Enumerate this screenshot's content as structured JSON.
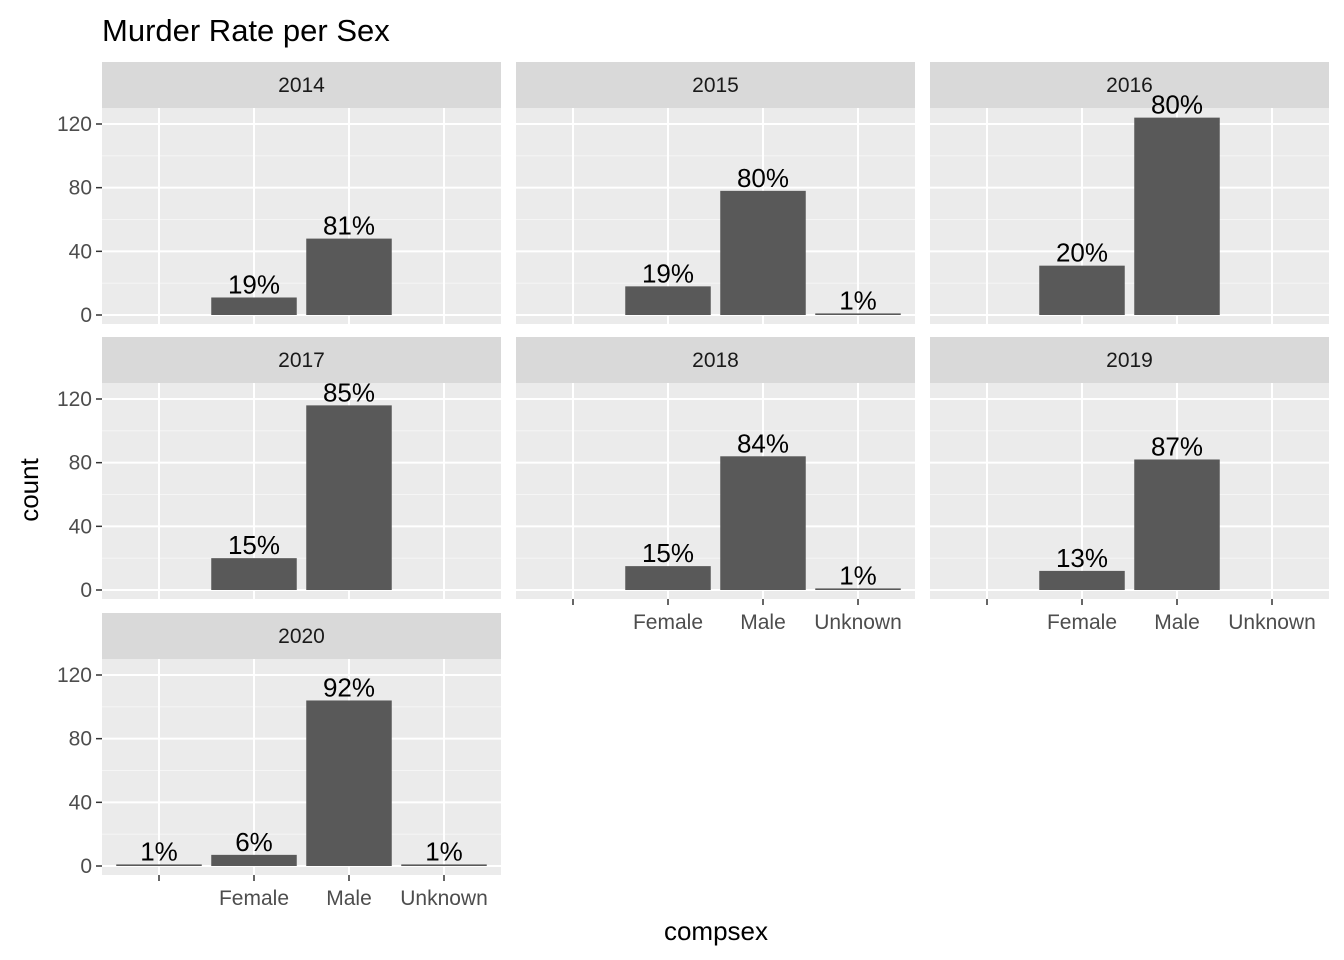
{
  "chart_data": {
    "type": "bar",
    "title": "Murder Rate per Sex",
    "xlabel": "compsex",
    "ylabel": "count",
    "categories": [
      "",
      "Female",
      "Male",
      "Unknown"
    ],
    "ylim": [
      0,
      140
    ],
    "yticks": [
      0,
      40,
      80,
      120
    ],
    "grid": true,
    "panels": [
      {
        "facet": "2014",
        "values": [
          0,
          11,
          48,
          0
        ],
        "labels": [
          "",
          "19%",
          "81%",
          ""
        ]
      },
      {
        "facet": "2015",
        "values": [
          0,
          18,
          78,
          1
        ],
        "labels": [
          "",
          "19%",
          "80%",
          "1%"
        ]
      },
      {
        "facet": "2016",
        "values": [
          0,
          31,
          124,
          0
        ],
        "labels": [
          "",
          "20%",
          "80%",
          ""
        ]
      },
      {
        "facet": "2017",
        "values": [
          0,
          20,
          116,
          0
        ],
        "labels": [
          "",
          "15%",
          "85%",
          ""
        ]
      },
      {
        "facet": "2018",
        "values": [
          0,
          15,
          84,
          1
        ],
        "labels": [
          "",
          "15%",
          "84%",
          "1%"
        ]
      },
      {
        "facet": "2019",
        "values": [
          0,
          12,
          82,
          0
        ],
        "labels": [
          "",
          "13%",
          "87%",
          ""
        ]
      },
      {
        "facet": "2020",
        "values": [
          1,
          7,
          104,
          1
        ],
        "labels": [
          "1%",
          "6%",
          "92%",
          "1%"
        ]
      }
    ]
  }
}
